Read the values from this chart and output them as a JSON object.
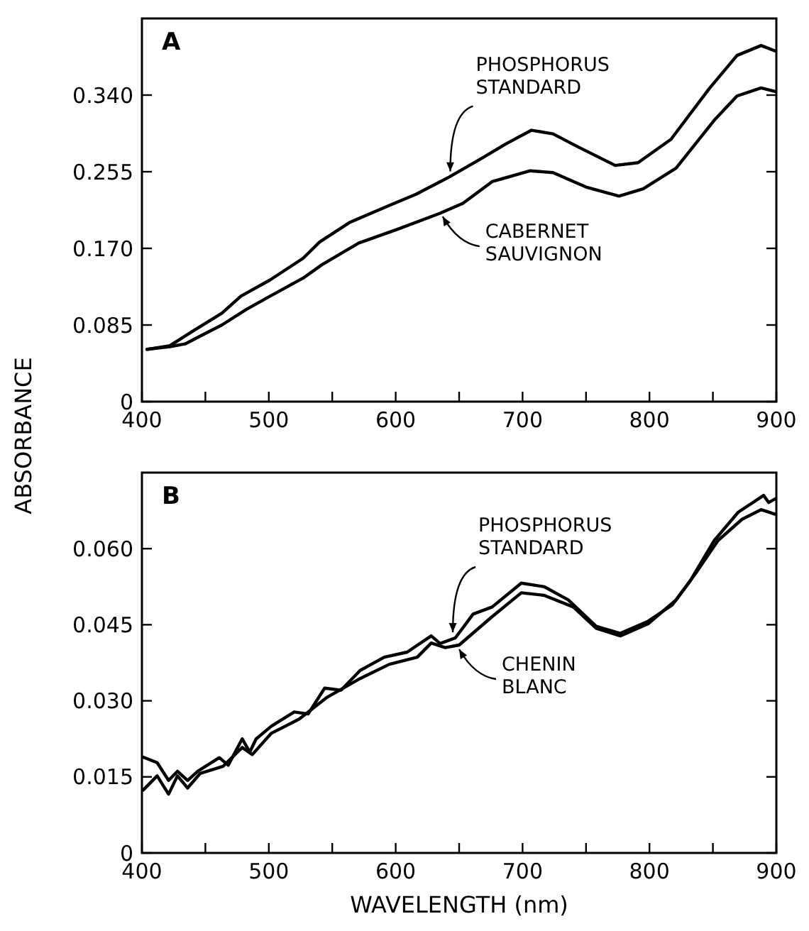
{
  "chart_data": [
    {
      "type": "line",
      "title": "A",
      "ylabel": "ABSORBANCE",
      "xlim": [
        400,
        900
      ],
      "ylim": [
        0,
        0.425
      ],
      "xticks": [
        400,
        {
          "value": 450,
          "label": null
        },
        500,
        {
          "value": 550,
          "label": null
        },
        600,
        {
          "value": 650,
          "label": null
        },
        700,
        {
          "value": 750,
          "label": null
        },
        800,
        {
          "value": 850,
          "label": null
        },
        900
      ],
      "yticks": [
        0,
        0.085,
        {
          "value": 0.17,
          "label": "0.170"
        },
        0.255,
        {
          "value": 0.34,
          "label": "0.340"
        }
      ],
      "grid": false,
      "line_style": "solid",
      "marker": "none",
      "series": [
        {
          "color": "#000000",
          "x": [
            404,
            422,
            441,
            463,
            478,
            501,
            527,
            540,
            564,
            594,
            616,
            642,
            668,
            687,
            707,
            724,
            743,
            773,
            791,
            817,
            847,
            869,
            888,
            899
          ],
          "values": [
            0.058,
            0.062,
            0.079,
            0.098,
            0.117,
            0.135,
            0.159,
            0.177,
            0.199,
            0.217,
            0.23,
            0.249,
            0.27,
            0.286,
            0.301,
            0.297,
            0.283,
            0.262,
            0.265,
            0.291,
            0.347,
            0.384,
            0.395,
            0.389
          ]
        },
        {
          "color": "#000000",
          "x": [
            404,
            422,
            434,
            445,
            463,
            482,
            501,
            527,
            542,
            571,
            601,
            635,
            653,
            676,
            706,
            724,
            750,
            776,
            795,
            821,
            851,
            869,
            888,
            899
          ],
          "values": [
            0.058,
            0.061,
            0.064,
            0.072,
            0.085,
            0.102,
            0.117,
            0.137,
            0.152,
            0.176,
            0.191,
            0.209,
            0.22,
            0.244,
            0.256,
            0.254,
            0.238,
            0.228,
            0.236,
            0.259,
            0.312,
            0.339,
            0.348,
            0.344
          ]
        }
      ],
      "annotations": [
        {
          "text": "PHOSPHORUS\nSTANDARD",
          "x": 643,
          "y": 0.249
        },
        {
          "text": "CABERNET\nSAUVIGNON",
          "x": 637,
          "y": 0.21
        }
      ]
    },
    {
      "type": "line",
      "title": "B",
      "xlabel": "WAVELENGTH (nm)",
      "xlim": [
        400,
        900
      ],
      "ylim": [
        0,
        0.075
      ],
      "xticks": [
        400,
        {
          "value": 450,
          "label": null
        },
        500,
        {
          "value": 550,
          "label": null
        },
        600,
        {
          "value": 650,
          "label": null
        },
        700,
        {
          "value": 750,
          "label": null
        },
        800,
        {
          "value": 850,
          "label": null
        },
        900
      ],
      "yticks": [
        0,
        0.015,
        {
          "value": 0.03,
          "label": "0.030"
        },
        0.045,
        {
          "value": 0.06,
          "label": "0.060"
        }
      ],
      "grid": false,
      "line_style": "solid",
      "marker": "none",
      "series": [
        {
          "color": "#000000",
          "x": [
            401,
            412,
            421,
            428,
            436,
            444,
            461,
            468,
            479,
            485,
            490,
            502,
            520,
            531,
            544,
            557,
            572,
            591,
            609,
            628,
            635,
            647,
            661,
            676,
            699,
            717,
            736,
            758,
            777,
            799,
            818,
            832,
            851,
            870,
            890,
            894,
            899
          ],
          "values": [
            0.0189,
            0.0178,
            0.0143,
            0.0161,
            0.0143,
            0.0161,
            0.0188,
            0.0173,
            0.0225,
            0.0199,
            0.0225,
            0.025,
            0.0278,
            0.0274,
            0.0325,
            0.0321,
            0.036,
            0.0386,
            0.0396,
            0.0428,
            0.0413,
            0.0424,
            0.0471,
            0.0485,
            0.0532,
            0.0525,
            0.0499,
            0.0447,
            0.0433,
            0.0457,
            0.0489,
            0.0536,
            0.0616,
            0.0672,
            0.0705,
            0.0691,
            0.0698
          ]
        },
        {
          "color": "#000000",
          "x": [
            401,
            412,
            421,
            428,
            436,
            446,
            464,
            479,
            487,
            502,
            524,
            546,
            572,
            595,
            617,
            628,
            639,
            650,
            676,
            699,
            717,
            740,
            758,
            777,
            799,
            821,
            836,
            854,
            873,
            888,
            899
          ],
          "values": [
            0.0124,
            0.0152,
            0.0116,
            0.0152,
            0.0128,
            0.0157,
            0.0171,
            0.0208,
            0.0194,
            0.0236,
            0.0264,
            0.0307,
            0.0344,
            0.0372,
            0.0386,
            0.0414,
            0.0405,
            0.041,
            0.0466,
            0.0513,
            0.0508,
            0.0485,
            0.0443,
            0.0428,
            0.0452,
            0.0499,
            0.055,
            0.0616,
            0.0658,
            0.0677,
            0.0668
          ]
        }
      ],
      "annotations": [
        {
          "text": "PHOSPHORUS\nSTANDARD",
          "x": 645,
          "y": 0.0424
        },
        {
          "text": "CHENIN\nBLANC",
          "x": 650,
          "y": 0.041
        }
      ]
    }
  ]
}
